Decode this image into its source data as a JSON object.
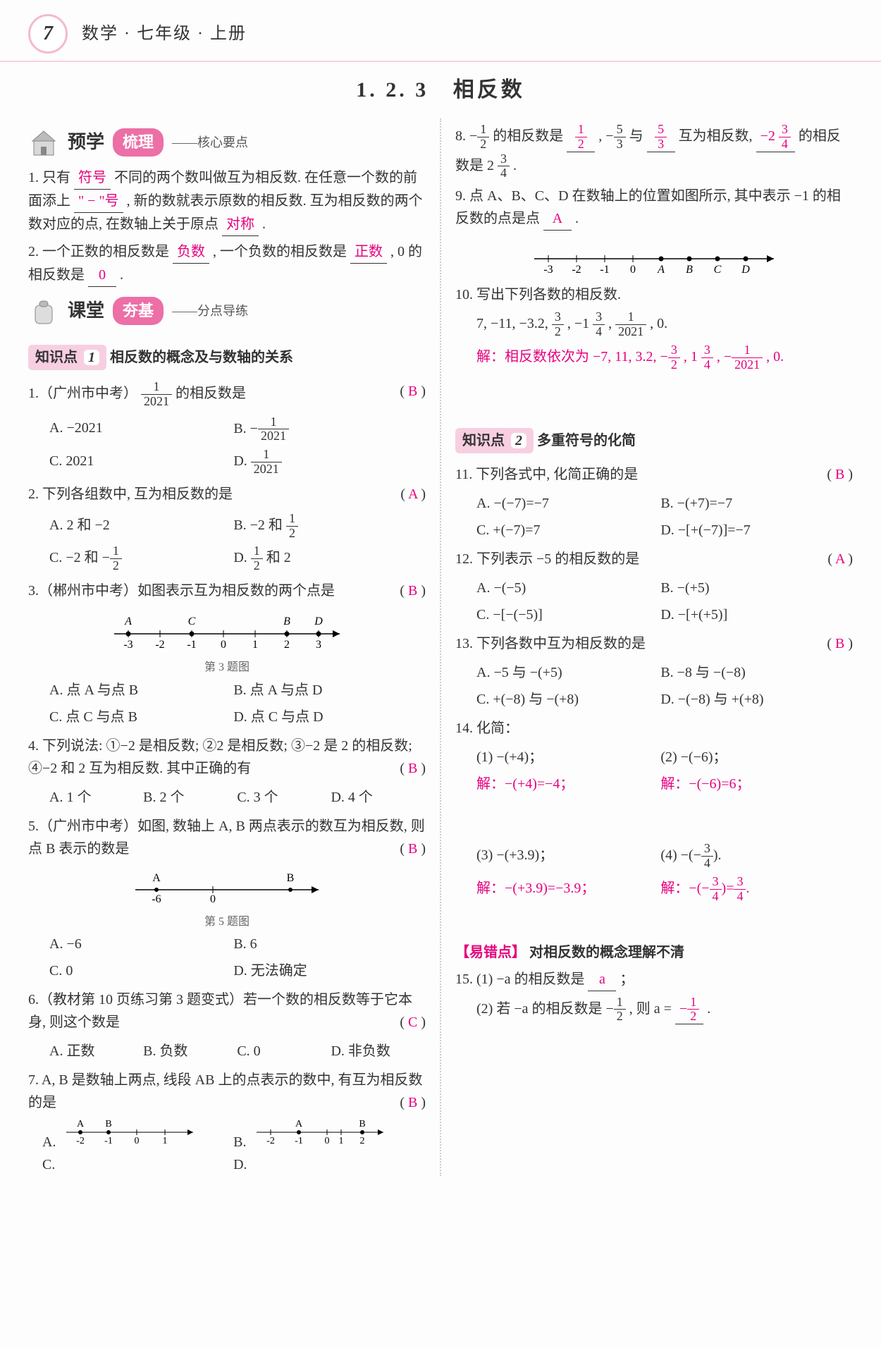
{
  "header": {
    "page_number": "7",
    "subject": "数学 · 七年级 · 上册"
  },
  "section_number": "1. 2. 3",
  "section_title": "相反数",
  "colors": {
    "accent_pink": "#e6007e",
    "pill_bg": "#f7cfe1",
    "badge_border": "#f3b9cf",
    "header_rule": "#f8d0df",
    "preview_pill": "#ec6fa6",
    "class_pill": "#ec6fa6"
  },
  "preview": {
    "label": "预学",
    "pill": "梳理",
    "sub": "——核心要点",
    "p1_a": "1. 只有",
    "p1_blank1": "符号",
    "p1_b": "不同的两个数叫做互为相反数. 在任意一个数的前面添上",
    "p1_blank2": "\" − \"号",
    "p1_c": ", 新的数就表示原数的相反数. 互为相反数的两个数对应的点, 在数轴上关于原点",
    "p1_blank3": "对称",
    "p1_d": ".",
    "p2_a": "2. 一个正数的相反数是",
    "p2_blank1": "负数",
    "p2_b": ", 一个负数的相反数是",
    "p2_blank2": "正数",
    "p2_c": ", 0 的相反数是",
    "p2_blank3": "0",
    "p2_d": "."
  },
  "class": {
    "label": "课堂",
    "pill": "夯基",
    "sub": "——分点导练"
  },
  "kp1": {
    "label": "知识点",
    "num": "1",
    "title": "相反数的概念及与数轴的关系"
  },
  "q1": {
    "stem_a": "1.（广州市中考）",
    "stem_b": "的相反数是",
    "frac_num": "1",
    "frac_den": "2021",
    "ans": "B",
    "optA": "A. −2021",
    "optB_a": "B. −",
    "optB_num": "1",
    "optB_den": "2021",
    "optC": "C. 2021",
    "optD_a": "D. ",
    "optD_num": "1",
    "optD_den": "2021"
  },
  "q2": {
    "stem": "2. 下列各组数中, 互为相反数的是",
    "ans": "A",
    "optA": "A. 2 和 −2",
    "optB_a": "B. −2 和 ",
    "optB_num": "1",
    "optB_den": "2",
    "optC_a": "C. −2 和 −",
    "optC_num": "1",
    "optC_den": "2",
    "optD_a": "D. ",
    "optD_num": "1",
    "optD_den": "2",
    "optD_b": " 和 2"
  },
  "q3": {
    "stem": "3.（郴州市中考）如图表示互为相反数的两个点是",
    "ans": "B",
    "caption": "第 3 题图",
    "ticks": [
      "-3",
      "-2",
      "-1",
      "0",
      "1",
      "2",
      "3"
    ],
    "labels": [
      {
        "t": "A",
        "x": -3
      },
      {
        "t": "C",
        "x": -1
      },
      {
        "t": "B",
        "x": 2
      },
      {
        "t": "D",
        "x": 3
      }
    ],
    "optA": "A. 点 A 与点 B",
    "optB": "B. 点 A 与点 D",
    "optC": "C. 点 C 与点 B",
    "optD": "D. 点 C 与点 D"
  },
  "q4": {
    "stem": "4. 下列说法: ①−2 是相反数; ②2 是相反数; ③−2 是 2 的相反数; ④−2 和 2 互为相反数. 其中正确的有",
    "ans": "B",
    "optA": "A. 1 个",
    "optB": "B. 2 个",
    "optC": "C. 3 个",
    "optD": "D. 4 个"
  },
  "q5": {
    "stem": "5.（广州市中考）如图, 数轴上 A, B 两点表示的数互为相反数, 则点 B 表示的数是",
    "ans": "B",
    "caption": "第 5 题图",
    "Apos": -6,
    "Bpos": 6,
    "optA": "A. −6",
    "optB": "B. 6",
    "optC": "C. 0",
    "optD": "D. 无法确定"
  },
  "q6": {
    "stem": "6.（教材第 10 页练习第 3 题变式）若一个数的相反数等于它本身, 则这个数是",
    "ans": "C",
    "optA": "A. 正数",
    "optB": "B. 负数",
    "optC": "C. 0",
    "optD": "D. 非负数"
  },
  "q7": {
    "stem": "7. A, B 是数轴上两点, 线段 AB 上的点表示的数中, 有互为相反数的是",
    "ans": "B",
    "rowA": {
      "A": -2,
      "B": -1,
      "range": [
        -2,
        1
      ]
    },
    "rowB": {
      "A": -1,
      "B": 2,
      "range": [
        -2,
        2
      ]
    },
    "rowC_label": "C.",
    "rowD_label": "D."
  },
  "q8": {
    "a": "8. −",
    "num1": "1",
    "den1": "2",
    "b": " 的相反数是 ",
    "blank1_num": "1",
    "blank1_den": "2",
    "c": ", −",
    "num2": "5",
    "den2": "3",
    "d": " 与 ",
    "blank2_num": "5",
    "blank2_den": "3",
    "e": " 互为相反数, ",
    "blank3_a": "−2 ",
    "blank3_num": "3",
    "blank3_den": "4",
    "f": " 的相反数是 2 ",
    "f_num": "3",
    "f_den": "4",
    "g": "."
  },
  "q9": {
    "stem": "9. 点 A、B、C、D 在数轴上的位置如图所示, 其中表示 −1 的相反数的点是点",
    "blank": "A",
    "dot": ".",
    "ticks": [
      "-3",
      "-2",
      "-1",
      "0"
    ],
    "ptlabels": [
      "A",
      "B",
      "C",
      "D"
    ]
  },
  "q10": {
    "stem": "10. 写出下列各数的相反数.",
    "list_a": "7, −11, −3.2, ",
    "n1": "3",
    "d1": "2",
    "list_b": ", −1 ",
    "n2": "3",
    "d2": "4",
    "list_c": ", ",
    "n3": "1",
    "d3": "2021",
    "list_d": ", 0.",
    "sol_label": "解：相反数依次为 −7, 11, 3.2, −",
    "s1n": "3",
    "s1d": "2",
    "sol_b": ", 1 ",
    "s2n": "3",
    "s2d": "4",
    "sol_c": ", −",
    "s3n": "1",
    "s3d": "2021",
    "sol_d": ", 0."
  },
  "kp2": {
    "label": "知识点",
    "num": "2",
    "title": "多重符号的化简"
  },
  "q11": {
    "stem": "11. 下列各式中, 化简正确的是",
    "ans": "B",
    "optA": "A. −(−7)=−7",
    "optB": "B. −(+7)=−7",
    "optC": "C. +(−7)=7",
    "optD": "D. −[+(−7)]=−7"
  },
  "q12": {
    "stem": "12. 下列表示 −5 的相反数的是",
    "ans": "A",
    "optA": "A. −(−5)",
    "optB": "B. −(+5)",
    "optC": "C. −[−(−5)]",
    "optD": "D. −[+(+5)]"
  },
  "q13": {
    "stem": "13. 下列各数中互为相反数的是",
    "ans": "B",
    "optA": "A. −5 与 −(+5)",
    "optB": "B. −8 与 −(−8)",
    "optC": "C. +(−8) 与 −(+8)",
    "optD": "D. −(−8) 与 +(+8)"
  },
  "q14": {
    "stem": "14. 化简：",
    "p1": "(1) −(+4)；",
    "p2": "(2) −(−6)；",
    "s1": "解：−(+4)=−4；",
    "s2": "解：−(−6)=6；",
    "p3": "(3) −(+3.9)；",
    "p4_a": "(4) −(−",
    "p4_num": "3",
    "p4_den": "4",
    "p4_b": ").",
    "s3": "解：−(+3.9)=−3.9；",
    "s4_a": "解：−(−",
    "s4_num": "3",
    "s4_den": "4",
    "s4_b": ")=",
    "s4_num2": "3",
    "s4_den2": "4",
    "s4_c": "."
  },
  "ez": {
    "tag": "【易错点】",
    "title": "对相反数的概念理解不清"
  },
  "q15": {
    "p1_a": "15. (1) −a 的相反数是 ",
    "blank1": "a",
    "p1_b": "；",
    "p2_a": "(2) 若 −a 的相反数是 −",
    "p2_num": "1",
    "p2_den": "2",
    "p2_b": ", 则 a = ",
    "blank2_a": "−",
    "blank2_num": "1",
    "blank2_den": "2",
    "p2_c": "."
  }
}
